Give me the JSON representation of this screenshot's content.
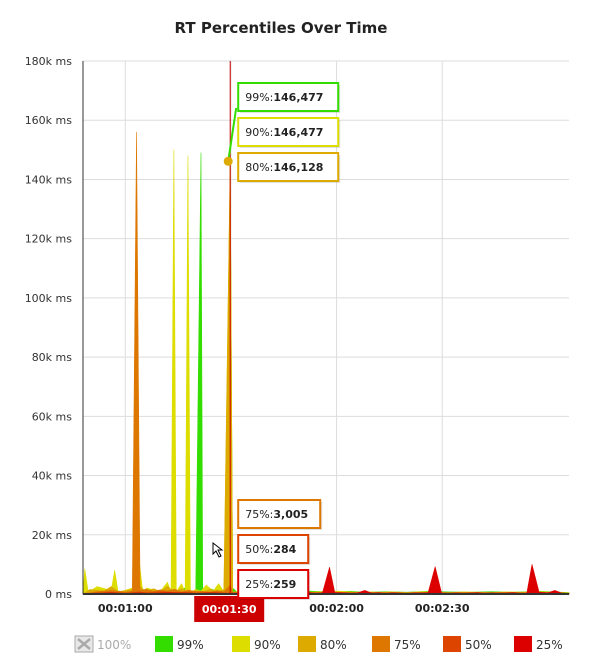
{
  "chart_data": {
    "type": "area",
    "title": "RT Percentiles Over Time",
    "y_unit": "ms",
    "ylim": [
      0,
      180000
    ],
    "y_ticks": [
      {
        "value": 0,
        "label": "0 ms"
      },
      {
        "value": 20000,
        "label": "20k ms"
      },
      {
        "value": 40000,
        "label": "40k ms"
      },
      {
        "value": 60000,
        "label": "60k ms"
      },
      {
        "value": 80000,
        "label": "80k ms"
      },
      {
        "value": 100000,
        "label": "100k ms"
      },
      {
        "value": 120000,
        "label": "120k ms"
      },
      {
        "value": 140000,
        "label": "140k ms"
      },
      {
        "value": 160000,
        "label": "160k ms"
      },
      {
        "value": 180000,
        "label": "180k ms"
      }
    ],
    "x_unit": "seconds",
    "xlim": [
      48,
      186
    ],
    "x_ticks": [
      {
        "value": 60,
        "label": "00:01:00"
      },
      {
        "value": 90,
        "label": "00:01:30"
      },
      {
        "value": 120,
        "label": "00:02:00"
      },
      {
        "value": 150,
        "label": "00:02:30"
      }
    ],
    "grid": true,
    "legend_position": "bottom",
    "series": [
      {
        "name": "100%",
        "color": "#aaaaaa",
        "enabled": false,
        "points": []
      },
      {
        "name": "99%",
        "color": "#33dd00",
        "enabled": true,
        "points": [
          [
            48,
            0
          ],
          [
            56,
            1200
          ],
          [
            60,
            800
          ],
          [
            66,
            500
          ],
          [
            70,
            1200
          ],
          [
            74,
            900
          ],
          [
            77,
            2000
          ],
          [
            80,
            300
          ],
          [
            81.5,
            149000
          ],
          [
            82,
            1500
          ],
          [
            84,
            1800
          ],
          [
            86,
            1000
          ],
          [
            89,
            1500
          ],
          [
            89.8,
            146477
          ],
          [
            90.5,
            2000
          ],
          [
            92,
            400
          ],
          [
            96,
            500
          ],
          [
            100,
            900
          ],
          [
            104,
            800
          ],
          [
            108,
            600
          ],
          [
            112,
            1000
          ],
          [
            118,
            700
          ],
          [
            124,
            900
          ],
          [
            128,
            600
          ],
          [
            134,
            800
          ],
          [
            140,
            600
          ],
          [
            146,
            900
          ],
          [
            152,
            700
          ],
          [
            158,
            600
          ],
          [
            164,
            800
          ],
          [
            170,
            600
          ],
          [
            178,
            900
          ],
          [
            182,
            700
          ],
          [
            186,
            500
          ]
        ]
      },
      {
        "name": "90%",
        "color": "#dddd00",
        "enabled": true,
        "points": [
          [
            48,
            0
          ],
          [
            48.5,
            8500
          ],
          [
            49.5,
            600
          ],
          [
            52,
            2500
          ],
          [
            56,
            1200
          ],
          [
            57,
            8000
          ],
          [
            58,
            500
          ],
          [
            62,
            2000
          ],
          [
            64,
            11000
          ],
          [
            65,
            500
          ],
          [
            66,
            2000
          ],
          [
            70,
            1000
          ],
          [
            72,
            4000
          ],
          [
            73,
            500
          ],
          [
            73.8,
            150000
          ],
          [
            74.5,
            800
          ],
          [
            76,
            3500
          ],
          [
            77,
            500
          ],
          [
            77.8,
            148000
          ],
          [
            78.5,
            600
          ],
          [
            80,
            1500
          ],
          [
            81.5,
            1000
          ],
          [
            83,
            3000
          ],
          [
            85,
            1000
          ],
          [
            86.5,
            3500
          ],
          [
            88,
            800
          ],
          [
            89.8,
            146477
          ],
          [
            90.5,
            800
          ],
          [
            94,
            600
          ],
          [
            96,
            1200
          ],
          [
            100,
            800
          ],
          [
            104,
            600
          ],
          [
            108,
            900
          ],
          [
            112,
            600
          ],
          [
            116,
            800
          ],
          [
            118,
            400
          ],
          [
            120,
            1000
          ],
          [
            124,
            700
          ],
          [
            126,
            600
          ],
          [
            128,
            800
          ],
          [
            132,
            600
          ],
          [
            136,
            700
          ],
          [
            140,
            500
          ],
          [
            144,
            800
          ],
          [
            148,
            600
          ],
          [
            152,
            500
          ],
          [
            156,
            700
          ],
          [
            160,
            600
          ],
          [
            164,
            500
          ],
          [
            168,
            700
          ],
          [
            172,
            600
          ],
          [
            178,
            800
          ],
          [
            182,
            600
          ],
          [
            186,
            400
          ]
        ]
      },
      {
        "name": "80%",
        "color": "#ddaa00",
        "enabled": true,
        "points": [
          [
            48,
            0
          ],
          [
            50,
            1500
          ],
          [
            54,
            1000
          ],
          [
            56,
            2500
          ],
          [
            58,
            800
          ],
          [
            62,
            1500
          ],
          [
            64,
            2800
          ],
          [
            66,
            600
          ],
          [
            68,
            1800
          ],
          [
            70,
            800
          ],
          [
            72,
            2600
          ],
          [
            74,
            600
          ],
          [
            76,
            1800
          ],
          [
            78,
            700
          ],
          [
            80,
            1200
          ],
          [
            82,
            700
          ],
          [
            84,
            1600
          ],
          [
            86,
            800
          ],
          [
            88,
            1400
          ],
          [
            89.8,
            146128
          ],
          [
            90.5,
            700
          ],
          [
            94,
            500
          ],
          [
            96,
            900
          ],
          [
            100,
            600
          ],
          [
            104,
            500
          ],
          [
            108,
            700
          ],
          [
            112,
            500
          ],
          [
            116,
            600
          ],
          [
            120,
            700
          ],
          [
            124,
            500
          ],
          [
            128,
            600
          ],
          [
            132,
            500
          ],
          [
            136,
            600
          ],
          [
            140,
            400
          ],
          [
            144,
            600
          ],
          [
            148,
            500
          ],
          [
            152,
            400
          ],
          [
            156,
            600
          ],
          [
            160,
            500
          ],
          [
            164,
            400
          ],
          [
            168,
            600
          ],
          [
            172,
            500
          ],
          [
            178,
            600
          ],
          [
            182,
            500
          ],
          [
            186,
            300
          ]
        ]
      },
      {
        "name": "75%",
        "color": "#dd7700",
        "enabled": true,
        "points": [
          [
            48,
            0
          ],
          [
            52,
            800
          ],
          [
            56,
            1200
          ],
          [
            60,
            600
          ],
          [
            62,
            1000
          ],
          [
            63.2,
            156000
          ],
          [
            64.2,
            1200
          ],
          [
            66,
            1600
          ],
          [
            68,
            900
          ],
          [
            70,
            1400
          ],
          [
            72,
            1000
          ],
          [
            74,
            1600
          ],
          [
            76,
            700
          ],
          [
            78,
            1300
          ],
          [
            80,
            800
          ],
          [
            82,
            900
          ],
          [
            84,
            600
          ],
          [
            86,
            1200
          ],
          [
            88,
            700
          ],
          [
            89.8,
            3005
          ],
          [
            90.5,
            600
          ],
          [
            94,
            400
          ],
          [
            96,
            700
          ],
          [
            100,
            500
          ],
          [
            104,
            400
          ],
          [
            108,
            600
          ],
          [
            112,
            400
          ],
          [
            116,
            500
          ],
          [
            120,
            600
          ],
          [
            124,
            400
          ],
          [
            128,
            500
          ],
          [
            132,
            400
          ],
          [
            136,
            500
          ],
          [
            140,
            300
          ],
          [
            144,
            500
          ],
          [
            148,
            400
          ],
          [
            152,
            300
          ],
          [
            156,
            500
          ],
          [
            160,
            400
          ],
          [
            164,
            300
          ],
          [
            168,
            500
          ],
          [
            172,
            400
          ],
          [
            178,
            500
          ],
          [
            182,
            400
          ],
          [
            186,
            200
          ]
        ]
      },
      {
        "name": "50%",
        "color": "#dd4400",
        "enabled": true,
        "points": [
          [
            48,
            0
          ],
          [
            52,
            400
          ],
          [
            56,
            600
          ],
          [
            60,
            300
          ],
          [
            62,
            500
          ],
          [
            64,
            700
          ],
          [
            66,
            400
          ],
          [
            70,
            800
          ],
          [
            74,
            500
          ],
          [
            78,
            600
          ],
          [
            80,
            300
          ],
          [
            82,
            500
          ],
          [
            86,
            600
          ],
          [
            88,
            400
          ],
          [
            89.8,
            284
          ],
          [
            90.5,
            300
          ],
          [
            94,
            200
          ],
          [
            96,
            300
          ],
          [
            100,
            500
          ],
          [
            104,
            400
          ],
          [
            108,
            300
          ],
          [
            112,
            500
          ],
          [
            116,
            300
          ],
          [
            120,
            400
          ],
          [
            124,
            300
          ],
          [
            128,
            400
          ],
          [
            132,
            300
          ],
          [
            136,
            400
          ],
          [
            140,
            300
          ],
          [
            144,
            400
          ],
          [
            148,
            300
          ],
          [
            152,
            200
          ],
          [
            156,
            300
          ],
          [
            160,
            400
          ],
          [
            164,
            300
          ],
          [
            168,
            200
          ],
          [
            172,
            300
          ],
          [
            178,
            400
          ],
          [
            182,
            300
          ],
          [
            186,
            200
          ]
        ]
      },
      {
        "name": "25%",
        "color": "#dd0000",
        "enabled": true,
        "points": [
          [
            48,
            0
          ],
          [
            52,
            200
          ],
          [
            56,
            300
          ],
          [
            60,
            200
          ],
          [
            64,
            300
          ],
          [
            68,
            200
          ],
          [
            72,
            400
          ],
          [
            76,
            300
          ],
          [
            80,
            200
          ],
          [
            84,
            300
          ],
          [
            88,
            200
          ],
          [
            89.8,
            259
          ],
          [
            92,
            200
          ],
          [
            96,
            150
          ],
          [
            100,
            200
          ],
          [
            104,
            600
          ],
          [
            106,
            1400
          ],
          [
            108,
            300
          ],
          [
            112,
            500
          ],
          [
            114,
            200
          ],
          [
            116,
            400
          ],
          [
            118,
            9000
          ],
          [
            119.5,
            500
          ],
          [
            122,
            400
          ],
          [
            124,
            300
          ],
          [
            126,
            400
          ],
          [
            128,
            1200
          ],
          [
            130,
            300
          ],
          [
            132,
            500
          ],
          [
            134,
            200
          ],
          [
            136,
            400
          ],
          [
            138,
            300
          ],
          [
            140,
            200
          ],
          [
            142,
            400
          ],
          [
            144,
            300
          ],
          [
            146,
            500
          ],
          [
            148,
            9200
          ],
          [
            149.8,
            400
          ],
          [
            152,
            300
          ],
          [
            154,
            400
          ],
          [
            156,
            200
          ],
          [
            160,
            500
          ],
          [
            162,
            300
          ],
          [
            164,
            400
          ],
          [
            168,
            300
          ],
          [
            170,
            500
          ],
          [
            172,
            300
          ],
          [
            174,
            200
          ],
          [
            175.5,
            10000
          ],
          [
            177.5,
            600
          ],
          [
            180,
            400
          ],
          [
            182,
            1200
          ],
          [
            184,
            300
          ],
          [
            186,
            200
          ]
        ]
      }
    ],
    "cursor": {
      "x": 89.8,
      "label": "00:01:30",
      "color": "#cc0000",
      "readouts": [
        {
          "series": "99%",
          "label": "99%:",
          "value": "146,477",
          "color": "#33dd00"
        },
        {
          "series": "90%",
          "label": "90%:",
          "value": "146,477",
          "color": "#dddd00"
        },
        {
          "series": "80%",
          "label": "80%:",
          "value": "146,128",
          "color": "#ddaa00"
        },
        {
          "series": "75%",
          "label": "75%:",
          "value": "3,005",
          "color": "#dd7700"
        },
        {
          "series": "50%",
          "label": "50%:",
          "value": "284",
          "color": "#dd4400"
        },
        {
          "series": "25%",
          "label": "25%:",
          "value": "259",
          "color": "#dd0000"
        }
      ],
      "marker_value": 146128,
      "marker_color": "#ddaa00"
    }
  }
}
